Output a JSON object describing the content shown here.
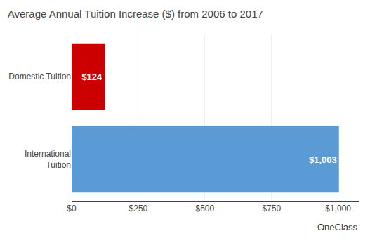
{
  "chart_data": {
    "type": "bar",
    "orientation": "horizontal",
    "title": "Average Annual Tuition Increase ($) from 2006 to 2017",
    "categories": [
      "Domestic Tuition",
      "International\nTuition"
    ],
    "values": [
      124,
      1003
    ],
    "value_labels": [
      "$124",
      "$1,003"
    ],
    "data_labels": true,
    "colors": [
      "#cc0000",
      "#5b9bd5"
    ],
    "xlim": [
      0,
      1080
    ],
    "xticks": [
      {
        "value": 0,
        "label": "$0"
      },
      {
        "value": 250,
        "label": "$250"
      },
      {
        "value": 500,
        "label": "$500"
      },
      {
        "value": 750,
        "label": "$750"
      },
      {
        "value": 1000,
        "label": "$1,000"
      }
    ],
    "grid": true,
    "annotations": [
      "OneClass"
    ]
  }
}
